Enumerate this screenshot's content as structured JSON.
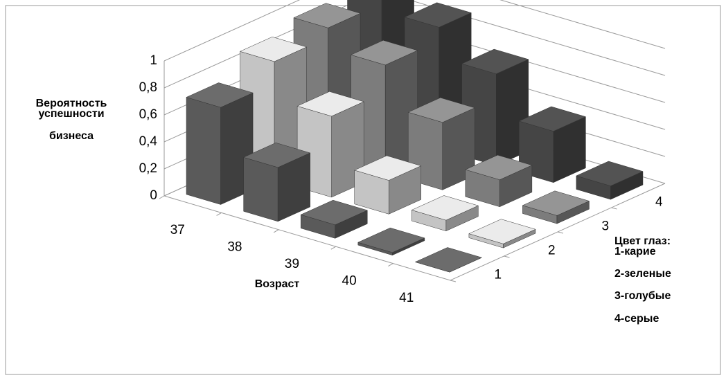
{
  "chart_data": {
    "type": "bar3d",
    "y_label": [
      "Вероятность",
      "успешности",
      "бизнеса"
    ],
    "x_label": "Возраст",
    "legend_title": "Цвет глаз:",
    "legend_items": [
      "1-карие",
      "2-зеленые",
      "3-голубые",
      "4-серые"
    ],
    "categories": [
      "37",
      "38",
      "39",
      "40",
      "41"
    ],
    "series": [
      {
        "name": "1",
        "color": "#5a5a5a",
        "values": [
          0.72,
          0.4,
          0.1,
          0.02,
          0
        ]
      },
      {
        "name": "2",
        "color": "#c4c4c4",
        "values": [
          0.88,
          0.6,
          0.25,
          0.08,
          0.03
        ]
      },
      {
        "name": "3",
        "color": "#7c7c7c",
        "values": [
          0.95,
          0.8,
          0.5,
          0.2,
          0.06
        ]
      },
      {
        "name": "4",
        "color": "#454545",
        "values": [
          1,
          0.9,
          0.68,
          0.38,
          0.1
        ]
      }
    ],
    "ylim": [
      0,
      1
    ],
    "yticks": [
      0,
      {
        "value": 0.2,
        "label": "0,2"
      },
      {
        "value": 0.4,
        "label": "0,4"
      },
      {
        "value": 0.6,
        "label": "0,6"
      },
      {
        "value": 0.8,
        "label": "0,8"
      },
      1
    ],
    "grid": true
  }
}
